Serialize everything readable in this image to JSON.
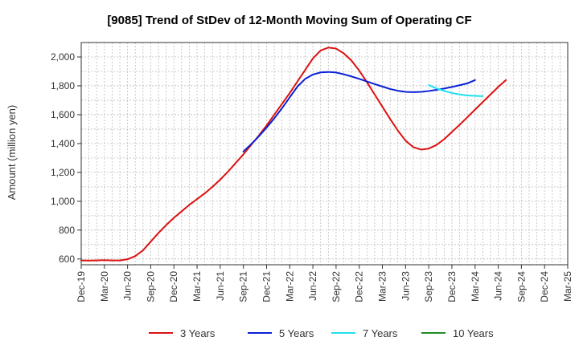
{
  "chart_data": {
    "type": "line",
    "title": "[9085]  Trend of StDev of 12-Month Moving Sum of Operating CF",
    "xlabel": "",
    "ylabel": "Amount (million yen)",
    "ylim": [
      560,
      2100
    ],
    "yticks": [
      600,
      800,
      1000,
      1200,
      1400,
      1600,
      1800,
      2000
    ],
    "ytick_labels": [
      "600",
      "800",
      "1,000",
      "1,200",
      "1,400",
      "1,600",
      "1,800",
      "2,000"
    ],
    "x_tick_labels": [
      "Dec-19",
      "Mar-20",
      "Jun-20",
      "Sep-20",
      "Dec-20",
      "Mar-21",
      "Jun-21",
      "Sep-21",
      "Dec-21",
      "Mar-22",
      "Jun-22",
      "Sep-22",
      "Dec-22",
      "Mar-23",
      "Jun-23",
      "Sep-23",
      "Dec-23",
      "Mar-24",
      "Jun-24",
      "Sep-24",
      "Dec-24",
      "Mar-25"
    ],
    "grid": true,
    "legend_position": "bottom",
    "series": [
      {
        "name": "3 Years",
        "color": "#dd1111",
        "start_month_index": 0,
        "values": [
          590,
          589,
          590,
          592,
          590,
          590,
          598,
          620,
          660,
          720,
          780,
          835,
          885,
          930,
          975,
          1015,
          1055,
          1100,
          1150,
          1205,
          1265,
          1325,
          1390,
          1455,
          1525,
          1600,
          1675,
          1750,
          1830,
          1910,
          1990,
          2045,
          2065,
          2058,
          2025,
          1975,
          1905,
          1825,
          1740,
          1655,
          1570,
          1490,
          1420,
          1375,
          1358,
          1365,
          1390,
          1430,
          1480,
          1530,
          1582,
          1635,
          1688,
          1740,
          1792,
          1840
        ]
      },
      {
        "name": "5 Years",
        "color": "#0a1fd6",
        "start_month_index": 21,
        "values": [
          1345,
          1395,
          1450,
          1510,
          1575,
          1645,
          1720,
          1795,
          1848,
          1878,
          1893,
          1896,
          1892,
          1880,
          1865,
          1848,
          1830,
          1812,
          1795,
          1778,
          1766,
          1758,
          1756,
          1758,
          1764,
          1772,
          1781,
          1792,
          1804,
          1817,
          1840
        ]
      },
      {
        "name": "7 Years",
        "color": "#22e0ee",
        "start_month_index": 45,
        "values": [
          1805,
          1782,
          1765,
          1750,
          1740,
          1733,
          1730,
          1728
        ]
      },
      {
        "name": "10 Years",
        "color": "#1e8c1e",
        "start_month_index": 0,
        "values": []
      }
    ]
  }
}
